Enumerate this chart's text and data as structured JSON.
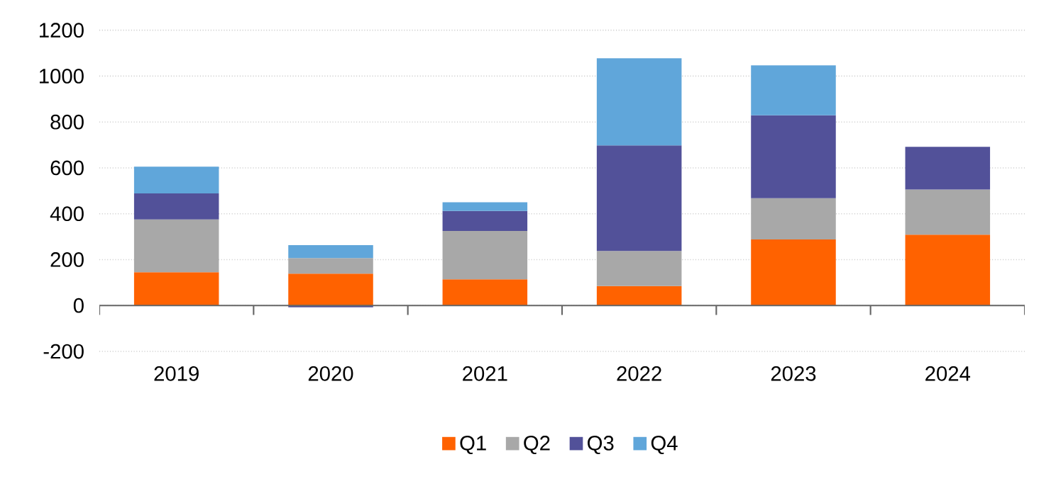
{
  "chart_data": {
    "type": "bar",
    "stacked": true,
    "categories": [
      "2019",
      "2020",
      "2021",
      "2022",
      "2023",
      "2024"
    ],
    "series": [
      {
        "name": "Q1",
        "color": "#ff6200",
        "values": [
          145,
          139,
          114,
          85,
          288,
          309
        ]
      },
      {
        "name": "Q2",
        "color": "#a8a8a8",
        "values": [
          230,
          68,
          211,
          153,
          180,
          197
        ]
      },
      {
        "name": "Q3",
        "color": "#525199",
        "values": [
          114,
          -8,
          87,
          460,
          361,
          186
        ]
      },
      {
        "name": "Q4",
        "color": "#60a6da",
        "values": [
          116,
          56,
          38,
          380,
          218,
          null
        ]
      }
    ],
    "ylim": [
      -200,
      1200
    ],
    "yticks": [
      -200,
      0,
      200,
      400,
      600,
      800,
      1000,
      1200
    ],
    "grid": "y",
    "legend": "bottom"
  }
}
